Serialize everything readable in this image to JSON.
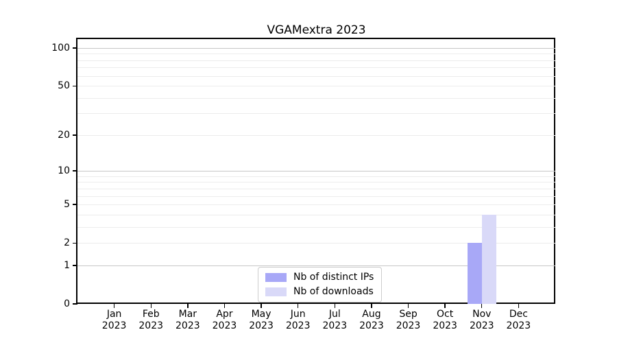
{
  "chart_data": {
    "type": "bar",
    "title": "VGAMextra 2023",
    "year_label": "2023",
    "categories": [
      "Jan",
      "Feb",
      "Mar",
      "Apr",
      "May",
      "Jun",
      "Jul",
      "Aug",
      "Sep",
      "Oct",
      "Nov",
      "Dec"
    ],
    "series": [
      {
        "name": "Nb of distinct IPs",
        "color": "#a8a8f7",
        "values": [
          0,
          0,
          0,
          0,
          0,
          0,
          0,
          0,
          0,
          0,
          2,
          0
        ]
      },
      {
        "name": "Nb of downloads",
        "color": "#d9d9f8",
        "values": [
          0,
          0,
          0,
          0,
          0,
          0,
          0,
          0,
          0,
          0,
          4,
          0
        ]
      }
    ],
    "y_axis": {
      "scale": "log1p",
      "ylim": [
        0,
        117.6
      ],
      "tick_labels": [
        0,
        1,
        2,
        5,
        10,
        20,
        50,
        100
      ],
      "major_gridlines": [
        1,
        10,
        100
      ],
      "minor_gridlines": [
        2,
        3,
        4,
        5,
        6,
        7,
        8,
        9,
        20,
        30,
        40,
        50,
        60,
        70,
        80,
        90
      ]
    },
    "x_axis": {
      "grid": false
    },
    "legend": {
      "position": "lower center"
    },
    "colors": {
      "major_grid": "#c6c6c6",
      "minor_grid": "#ececec",
      "axis": "#000000",
      "background": "#ffffff"
    }
  }
}
